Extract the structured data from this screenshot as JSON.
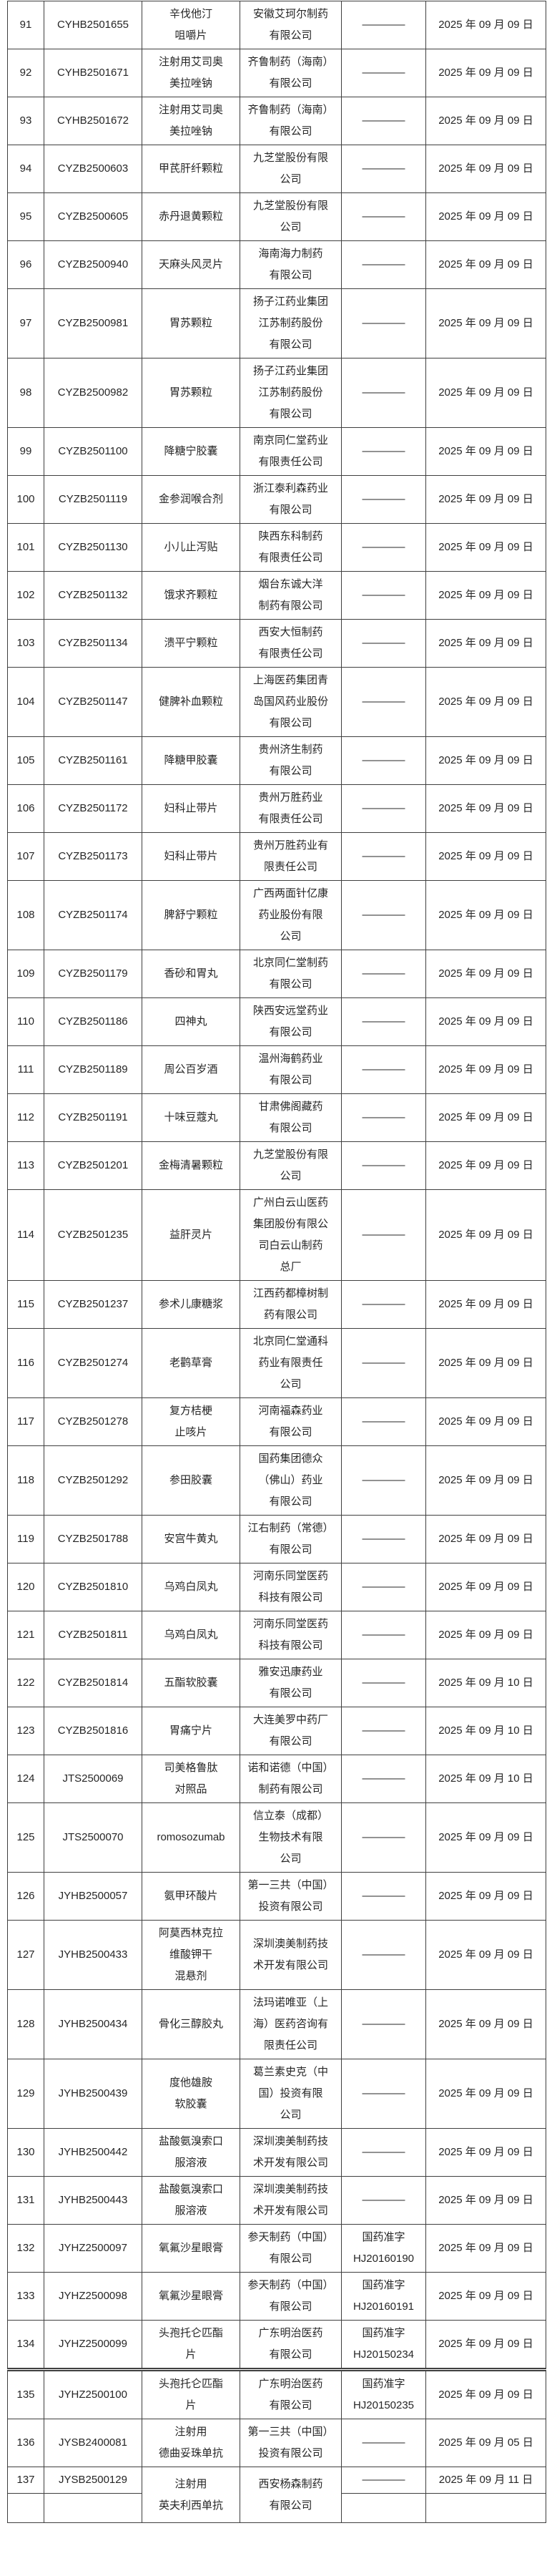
{
  "page": {
    "background": "#ffffff",
    "border_color": "#3f3f3f",
    "text_color": "#262626",
    "dash_placeholder": "————"
  },
  "table": {
    "rows": [
      {
        "no": "91",
        "approval_no": "CYHB2501655",
        "drug": "辛伐他汀\n咀嚼片",
        "company": "安徽艾珂尔制药\n有限公司",
        "doc": "————",
        "date": "2025 年 09 月 09 日"
      },
      {
        "no": "92",
        "approval_no": "CYHB2501671",
        "drug": "注射用艾司奥\n美拉唑钠",
        "company": "齐鲁制药（海南）\n有限公司",
        "doc": "————",
        "date": "2025 年 09 月 09 日"
      },
      {
        "no": "93",
        "approval_no": "CYHB2501672",
        "drug": "注射用艾司奥\n美拉唑钠",
        "company": "齐鲁制药（海南）\n有限公司",
        "doc": "————",
        "date": "2025 年 09 月 09 日"
      },
      {
        "no": "94",
        "approval_no": "CYZB2500603",
        "drug": "甲芪肝纤颗粒",
        "company": "九芝堂股份有限\n公司",
        "doc": "————",
        "date": "2025 年 09 月 09 日"
      },
      {
        "no": "95",
        "approval_no": "CYZB2500605",
        "drug": "赤丹退黄颗粒",
        "company": "九芝堂股份有限\n公司",
        "doc": "————",
        "date": "2025 年 09 月 09 日"
      },
      {
        "no": "96",
        "approval_no": "CYZB2500940",
        "drug": "天麻头风灵片",
        "company": "海南海力制药\n有限公司",
        "doc": "————",
        "date": "2025 年 09 月 09 日"
      },
      {
        "no": "97",
        "approval_no": "CYZB2500981",
        "drug": "胃苏颗粒",
        "company": "扬子江药业集团\n江苏制药股份\n有限公司",
        "doc": "————",
        "date": "2025 年 09 月 09 日"
      },
      {
        "no": "98",
        "approval_no": "CYZB2500982",
        "drug": "胃苏颗粒",
        "company": "扬子江药业集团\n江苏制药股份\n有限公司",
        "doc": "————",
        "date": "2025 年 09 月 09 日"
      },
      {
        "no": "99",
        "approval_no": "CYZB2501100",
        "drug": "降糖宁胶囊",
        "company": "南京同仁堂药业\n有限责任公司",
        "doc": "————",
        "date": "2025 年 09 月 09 日"
      },
      {
        "no": "100",
        "approval_no": "CYZB2501119",
        "drug": "金参润喉合剂",
        "company": "浙江泰利森药业\n有限公司",
        "doc": "————",
        "date": "2025 年 09 月 09 日"
      },
      {
        "no": "101",
        "approval_no": "CYZB2501130",
        "drug": "小儿止泻贴",
        "company": "陕西东科制药\n有限责任公司",
        "doc": "————",
        "date": "2025 年 09 月 09 日"
      },
      {
        "no": "102",
        "approval_no": "CYZB2501132",
        "drug": "饿求齐颗粒",
        "company": "烟台东诚大洋\n制药有限公司",
        "doc": "————",
        "date": "2025 年 09 月 09 日"
      },
      {
        "no": "103",
        "approval_no": "CYZB2501134",
        "drug": "溃平宁颗粒",
        "company": "西安大恒制药\n有限责任公司",
        "doc": "————",
        "date": "2025 年 09 月 09 日"
      },
      {
        "no": "104",
        "approval_no": "CYZB2501147",
        "drug": "健脾补血颗粒",
        "company": "上海医药集团青\n岛国风药业股份\n有限公司",
        "doc": "————",
        "date": "2025 年 09 月 09 日"
      },
      {
        "no": "105",
        "approval_no": "CYZB2501161",
        "drug": "降糖甲胶囊",
        "company": "贵州济生制药\n有限公司",
        "doc": "————",
        "date": "2025 年 09 月 09 日"
      },
      {
        "no": "106",
        "approval_no": "CYZB2501172",
        "drug": "妇科止带片",
        "company": "贵州万胜药业\n有限责任公司",
        "doc": "————",
        "date": "2025 年 09 月 09 日"
      },
      {
        "no": "107",
        "approval_no": "CYZB2501173",
        "drug": "妇科止带片",
        "company": "贵州万胜药业有\n限责任公司",
        "doc": "————",
        "date": "2025 年 09 月 09 日"
      },
      {
        "no": "108",
        "approval_no": "CYZB2501174",
        "drug": "脾舒宁颗粒",
        "company": "广西两面针亿康\n药业股份有限\n公司",
        "doc": "————",
        "date": "2025 年 09 月 09 日"
      },
      {
        "no": "109",
        "approval_no": "CYZB2501179",
        "drug": "香砂和胃丸",
        "company": "北京同仁堂制药\n有限公司",
        "doc": "————",
        "date": "2025 年 09 月 09 日"
      },
      {
        "no": "110",
        "approval_no": "CYZB2501186",
        "drug": "四神丸",
        "company": "陕西安远堂药业\n有限公司",
        "doc": "————",
        "date": "2025 年 09 月 09 日"
      },
      {
        "no": "111",
        "approval_no": "CYZB2501189",
        "drug": "周公百岁酒",
        "company": "温州海鹤药业\n有限公司",
        "doc": "————",
        "date": "2025 年 09 月 09 日"
      },
      {
        "no": "112",
        "approval_no": "CYZB2501191",
        "drug": "十味豆蔻丸",
        "company": "甘肃佛阁藏药\n有限公司",
        "doc": "————",
        "date": "2025 年 09 月 09 日"
      },
      {
        "no": "113",
        "approval_no": "CYZB2501201",
        "drug": "金梅清暑颗粒",
        "company": "九芝堂股份有限\n公司",
        "doc": "————",
        "date": "2025 年 09 月 09 日"
      },
      {
        "no": "114",
        "approval_no": "CYZB2501235",
        "drug": "益肝灵片",
        "company": "广州白云山医药\n集团股份有限公\n司白云山制药\n总厂",
        "doc": "————",
        "date": "2025 年 09 月 09 日"
      },
      {
        "no": "115",
        "approval_no": "CYZB2501237",
        "drug": "参术儿康糖浆",
        "company": "江西药都樟树制\n药有限公司",
        "doc": "————",
        "date": "2025 年 09 月 09 日"
      },
      {
        "no": "116",
        "approval_no": "CYZB2501274",
        "drug": "老鹳草膏",
        "company": "北京同仁堂通科\n药业有限责任\n公司",
        "doc": "————",
        "date": "2025 年 09 月 09 日"
      },
      {
        "no": "117",
        "approval_no": "CYZB2501278",
        "drug": "复方桔梗\n止咳片",
        "company": "河南福森药业\n有限公司",
        "doc": "————",
        "date": "2025 年 09 月 09 日"
      },
      {
        "no": "118",
        "approval_no": "CYZB2501292",
        "drug": "参田胶囊",
        "company": "国药集团德众\n（佛山）药业\n有限公司",
        "doc": "————",
        "date": "2025 年 09 月 09 日"
      },
      {
        "no": "119",
        "approval_no": "CYZB2501788",
        "drug": "安宫牛黄丸",
        "company": "江右制药（常德）\n有限公司",
        "doc": "————",
        "date": "2025 年 09 月 09 日"
      },
      {
        "no": "120",
        "approval_no": "CYZB2501810",
        "drug": "乌鸡白凤丸",
        "company": "河南乐同堂医药\n科技有限公司",
        "doc": "————",
        "date": "2025 年 09 月 09 日"
      },
      {
        "no": "121",
        "approval_no": "CYZB2501811",
        "drug": "乌鸡白凤丸",
        "company": "河南乐同堂医药\n科技有限公司",
        "doc": "————",
        "date": "2025 年 09 月 09 日"
      },
      {
        "no": "122",
        "approval_no": "CYZB2501814",
        "drug": "五酯软胶囊",
        "company": "雅安迅康药业\n有限公司",
        "doc": "————",
        "date": "2025 年 09 月 10 日"
      },
      {
        "no": "123",
        "approval_no": "CYZB2501816",
        "drug": "胃痛宁片",
        "company": "大连美罗中药厂\n有限公司",
        "doc": "————",
        "date": "2025 年 09 月 10 日"
      },
      {
        "no": "124",
        "approval_no": "JTS2500069",
        "drug": "司美格鲁肽\n对照品",
        "company": "诺和诺德（中国）\n制药有限公司",
        "doc": "————",
        "date": "2025 年 09 月 10 日"
      },
      {
        "no": "125",
        "approval_no": "JTS2500070",
        "drug": "romosozumab",
        "company": "信立泰（成都）\n生物技术有限\n公司",
        "doc": "————",
        "date": "2025 年 09 月 09 日"
      },
      {
        "no": "126",
        "approval_no": "JYHB2500057",
        "drug": "氨甲环酸片",
        "company": "第一三共（中国）\n投资有限公司",
        "doc": "————",
        "date": "2025 年 09 月 09 日"
      },
      {
        "no": "127",
        "approval_no": "JYHB2500433",
        "drug": "阿莫西林克拉\n维酸钾干\n混悬剂",
        "company": "深圳澳美制药技\n术开发有限公司",
        "doc": "————",
        "date": "2025 年 09 月 09 日"
      },
      {
        "no": "128",
        "approval_no": "JYHB2500434",
        "drug": "骨化三醇胶丸",
        "company": "法玛诺唯亚（上\n海）医药咨询有\n限责任公司",
        "doc": "————",
        "date": "2025 年 09 月 09 日"
      },
      {
        "no": "129",
        "approval_no": "JYHB2500439",
        "drug": "度他雄胺\n软胶囊",
        "company": "葛兰素史克（中\n国）投资有限\n公司",
        "doc": "————",
        "date": "2025 年 09 月 09 日"
      },
      {
        "no": "130",
        "approval_no": "JYHB2500442",
        "drug": "盐酸氨溴索口\n服溶液",
        "company": "深圳澳美制药技\n术开发有限公司",
        "doc": "————",
        "date": "2025 年 09 月 09 日"
      },
      {
        "no": "131",
        "approval_no": "JYHB2500443",
        "drug": "盐酸氨溴索口\n服溶液",
        "company": "深圳澳美制药技\n术开发有限公司",
        "doc": "————",
        "date": "2025 年 09 月 09 日"
      },
      {
        "no": "132",
        "approval_no": "JYHZ2500097",
        "drug": "氧氟沙星眼膏",
        "company": "参天制药（中国）\n有限公司",
        "doc": "国药准字\nHJ20160190",
        "date": "2025 年 09 月 09 日"
      },
      {
        "no": "133",
        "approval_no": "JYHZ2500098",
        "drug": "氧氟沙星眼膏",
        "company": "参天制药（中国）\n有限公司",
        "doc": "国药准字\nHJ20160191",
        "date": "2025 年 09 月 09 日"
      },
      {
        "no": "134",
        "approval_no": "JYHZ2500099",
        "drug": "头孢托仑匹酯\n片",
        "company": "广东明治医药\n有限公司",
        "doc": "国药准字\nHJ20150234",
        "date": "2025 年 09 月 09 日"
      },
      {
        "no": "135",
        "approval_no": "JYHZ2500100",
        "drug": "头孢托仑匹酯\n片",
        "company": "广东明治医药\n有限公司",
        "doc": "国药准字\nHJ20150235",
        "date": "2025 年 09 月 09 日",
        "page_break_before": true
      },
      {
        "no": "136",
        "approval_no": "JYSB2400081",
        "drug": "注射用\n德曲妥珠单抗",
        "company": "第一三共（中国）\n投资有限公司",
        "doc": "————",
        "date": "2025 年 09 月 05 日"
      },
      {
        "no": "137",
        "approval_no": "JYSB2500129",
        "drug": "注射用\n英夫利西单抗",
        "company": "西安杨森制药\n有限公司",
        "doc": "————",
        "date": "2025 年 09 月 11 日",
        "split": true
      }
    ]
  }
}
